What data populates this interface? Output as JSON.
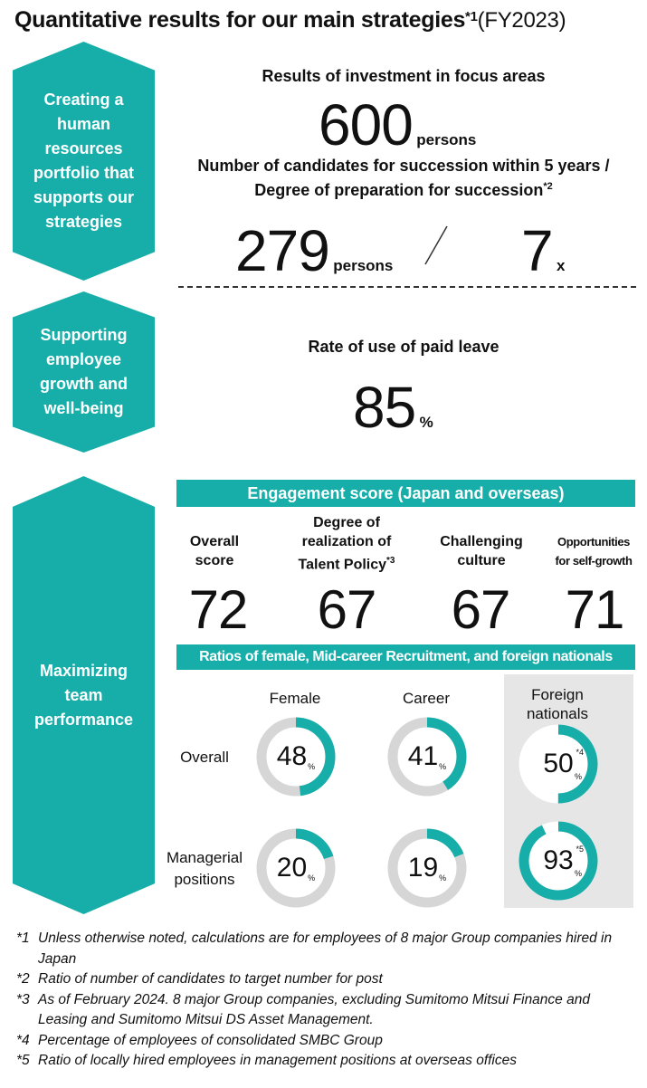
{
  "title": {
    "main": "Quantitative results for our main strategies",
    "sup": "*1",
    "fy": "(FY2023)"
  },
  "strategies": [
    {
      "label": "Creating a human resources portfolio that supports our strategies"
    },
    {
      "label": "Supporting employee growth and well-being"
    },
    {
      "label": "Maximizing team performance"
    }
  ],
  "investment": {
    "header": "Results of investment in focus areas",
    "value": "600",
    "unit": "persons"
  },
  "succession": {
    "header_line1": "Number of candidates for succession within 5 years /",
    "header_line2": "Degree of preparation for succession",
    "header_sup": "*2",
    "value1": "279",
    "unit1": "persons",
    "value2": "7",
    "unit2": "x"
  },
  "paid_leave": {
    "header": "Rate of use of paid leave",
    "value": "85",
    "unit": "%"
  },
  "engagement": {
    "header": "Engagement score (Japan and overseas)",
    "columns": [
      {
        "line1": "Overall",
        "line2": "score",
        "line3": "",
        "sup": "",
        "value": "72"
      },
      {
        "line1": "Degree of",
        "line2": "realization of",
        "line3": "Talent Policy",
        "sup": "*3",
        "value": "67"
      },
      {
        "line1": "Challenging",
        "line2": "culture",
        "line3": "",
        "sup": "",
        "value": "67"
      },
      {
        "line1": "Opportunities",
        "line2": "for self-growth",
        "line3": "",
        "sup": "",
        "value": "71"
      }
    ]
  },
  "ratios": {
    "header": "Ratios of female, Mid-career Recruitment, and foreign nationals",
    "col_labels": [
      "Female",
      "Career",
      "Foreign nationals"
    ],
    "row_labels": [
      "Overall",
      "Managerial positions"
    ],
    "values": [
      {
        "row": "Overall",
        "col": "Female",
        "value": 48,
        "sup": ""
      },
      {
        "row": "Overall",
        "col": "Career",
        "value": 41,
        "sup": ""
      },
      {
        "row": "Overall",
        "col": "Foreign nationals",
        "value": 50,
        "sup": "*4"
      },
      {
        "row": "Managerial positions",
        "col": "Female",
        "value": 20,
        "sup": ""
      },
      {
        "row": "Managerial positions",
        "col": "Career",
        "value": 19,
        "sup": ""
      },
      {
        "row": "Managerial positions",
        "col": "Foreign nationals",
        "value": 93,
        "sup": "*5"
      }
    ],
    "pct_symbol": "%"
  },
  "colors": {
    "accent": "#17aeaa",
    "ring_bg": "#d6d6d6",
    "panel": "#e6e6e6"
  },
  "notes": [
    {
      "key": "*1",
      "text": "Unless otherwise noted, calculations are for employees of 8 major Group companies hired in Japan"
    },
    {
      "key": "*2",
      "text": "Ratio of number of candidates to target number for post"
    },
    {
      "key": "*3",
      "text": "As of February 2024. 8 major Group companies, excluding Sumitomo Mitsui Finance and Leasing and Sumitomo Mitsui DS Asset Management."
    },
    {
      "key": "*4",
      "text": "Percentage of employees of consolidated SMBC Group"
    },
    {
      "key": "*5",
      "text": "Ratio of locally hired employees in management positions at overseas offices"
    }
  ]
}
